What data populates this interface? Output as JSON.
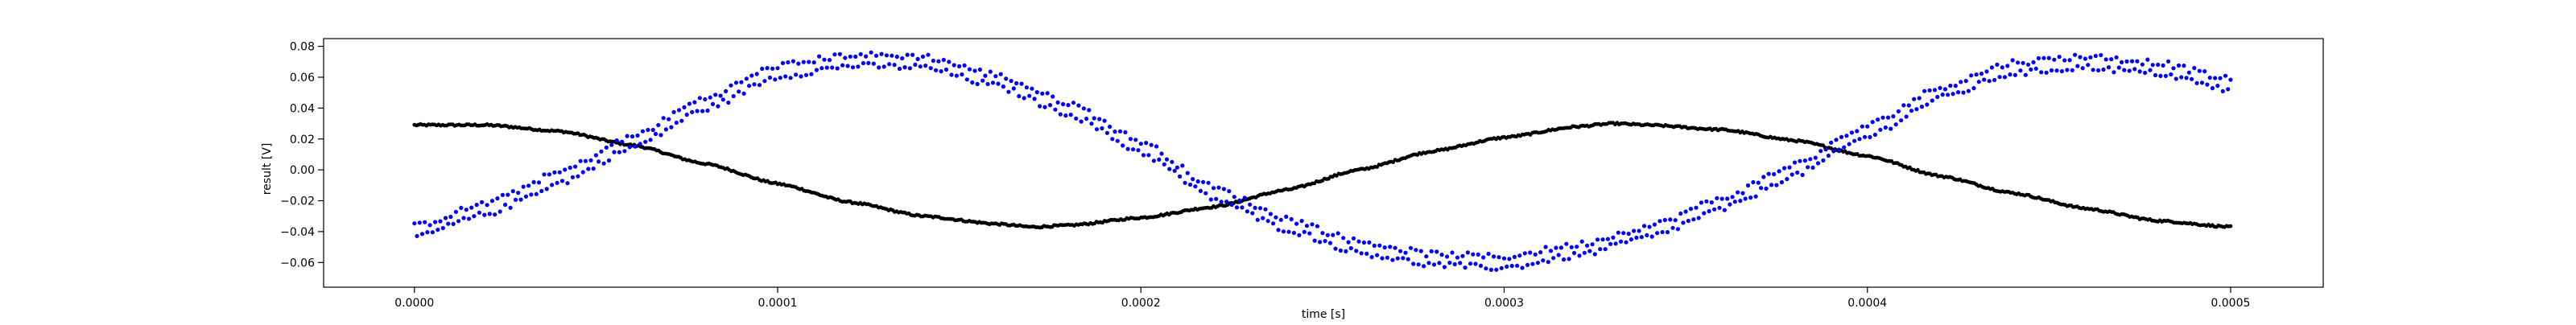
{
  "chart_data": {
    "type": "scatter",
    "title": "",
    "xlabel": "time [s]",
    "ylabel": "result [V]",
    "xlim": [
      -2.5e-05,
      0.0005255
    ],
    "ylim": [
      -0.076,
      0.085
    ],
    "x_ticks": [
      0.0,
      0.0001,
      0.0002,
      0.0003,
      0.0004,
      0.0005
    ],
    "x_tick_labels": [
      "0.0000",
      "0.0001",
      "0.0002",
      "0.0003",
      "0.0004",
      "0.0005"
    ],
    "y_ticks": [
      -0.06,
      -0.04,
      -0.02,
      0.0,
      0.02,
      0.04,
      0.06,
      0.08
    ],
    "y_tick_labels": [
      "−0.06",
      "−0.04",
      "−0.02",
      "0.00",
      "0.02",
      "0.04",
      "0.06",
      "0.08"
    ],
    "grid": false,
    "legend": "none",
    "series": [
      {
        "color": "#000000",
        "marker": "dot",
        "x": [
          0.0,
          2e-05,
          4e-05,
          6e-05,
          8e-05,
          0.0001,
          0.00012,
          0.00014,
          0.00016,
          0.00017,
          0.00018,
          0.0002,
          0.00022,
          0.00024,
          0.00026,
          0.00028,
          0.0003,
          0.00032,
          0.00033,
          0.00034,
          0.00036,
          0.00038,
          0.0004,
          0.00042,
          0.00044,
          0.00046,
          0.00048,
          0.0005
        ],
        "y": [
          0.029,
          0.029,
          0.025,
          0.016,
          0.004,
          -0.009,
          -0.021,
          -0.03,
          -0.035,
          -0.037,
          -0.036,
          -0.031,
          -0.024,
          -0.013,
          0.0,
          0.012,
          0.021,
          0.028,
          0.03,
          0.029,
          0.026,
          0.019,
          0.009,
          -0.004,
          -0.015,
          -0.025,
          -0.033,
          -0.037
        ]
      },
      {
        "color": "#0000ff",
        "marker": "dot",
        "x": [
          0.0,
          2e-05,
          4e-05,
          6e-05,
          8e-05,
          0.0001,
          0.00012,
          0.00014,
          0.00016,
          0.00018,
          0.0002,
          0.00022,
          0.00024,
          0.00026,
          0.00028,
          0.0003,
          0.00032,
          0.00034,
          0.00036,
          0.00038,
          0.0004,
          0.00042,
          0.00044,
          0.00046,
          0.00048,
          0.0005
        ],
        "y": [
          -0.04,
          -0.025,
          -0.005,
          0.018,
          0.043,
          0.064,
          0.071,
          0.07,
          0.058,
          0.04,
          0.015,
          -0.015,
          -0.035,
          -0.05,
          -0.058,
          -0.06,
          -0.052,
          -0.04,
          -0.022,
          0.0,
          0.025,
          0.05,
          0.066,
          0.07,
          0.066,
          0.055
        ]
      }
    ]
  }
}
